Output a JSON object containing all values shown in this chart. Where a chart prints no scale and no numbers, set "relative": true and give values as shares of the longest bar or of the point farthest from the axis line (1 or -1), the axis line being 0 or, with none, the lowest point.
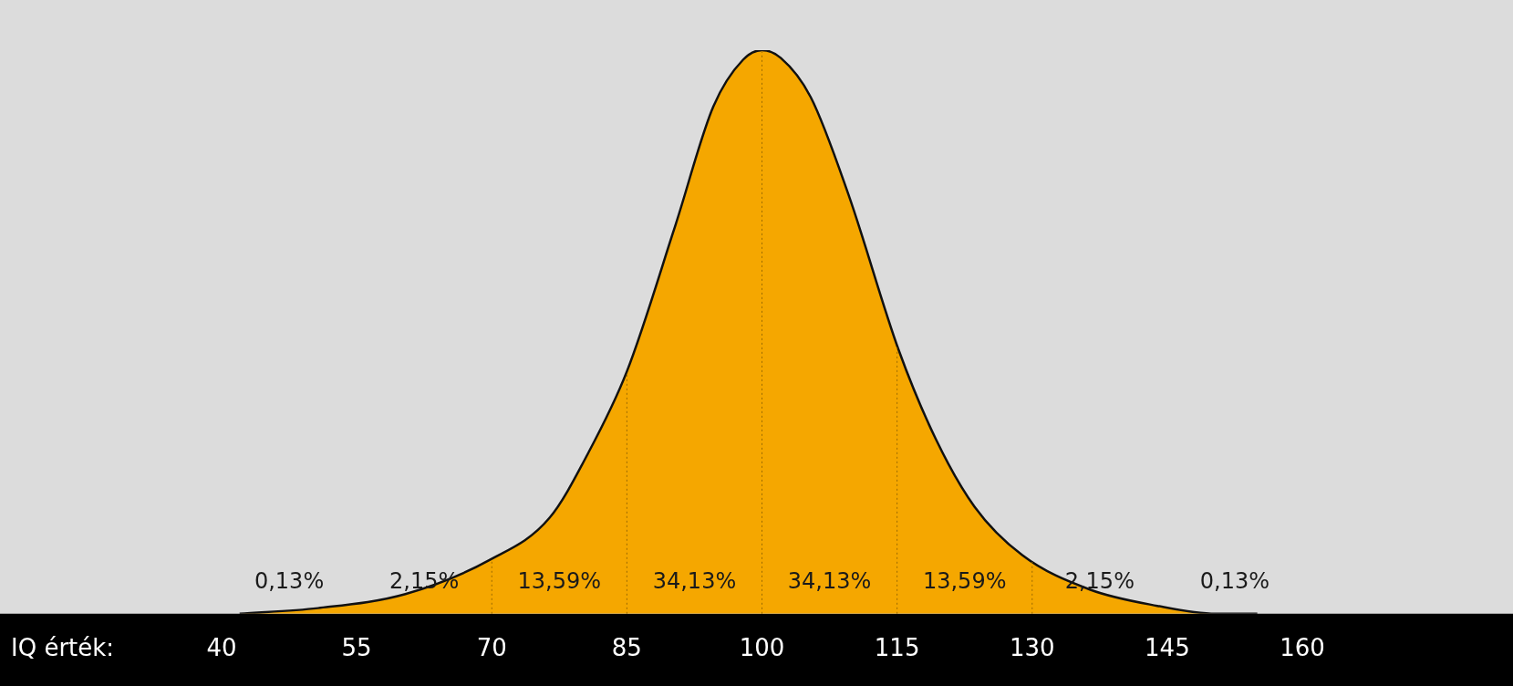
{
  "chart_data": {
    "type": "area",
    "relative": true,
    "xlabel": "IQ érték:",
    "xlim": [
      40,
      160
    ],
    "xticks": [
      40,
      55,
      70,
      85,
      100,
      115,
      130,
      145,
      160
    ],
    "tick_labels": "x",
    "grid": false,
    "legend": false,
    "series": [
      {
        "color": "#f5a700",
        "x": [
          42,
          50.7,
          60.4,
          69.7,
          76.4,
          80.7,
          85,
          90.4,
          94.6,
          97.9,
          100,
          102.1,
          105.4,
          109.6,
          115.2,
          119.3,
          123.6,
          128.9,
          136.4,
          143.9,
          150.4,
          155
        ],
        "values": [
          0,
          0.01,
          0.035,
          0.095,
          0.17,
          0.285,
          0.43,
          0.69,
          0.9,
          0.983,
          1,
          0.986,
          0.917,
          0.744,
          0.467,
          0.31,
          0.19,
          0.104,
          0.043,
          0.014,
          0,
          0
        ]
      }
    ],
    "ref_lines": [
      {
        "axis": "x",
        "value": 70,
        "color": "#9a6a00",
        "line_style": "dotted"
      },
      {
        "axis": "x",
        "value": 85,
        "color": "#9a6a00",
        "line_style": "dotted"
      },
      {
        "axis": "x",
        "value": 100,
        "color": "#9a6a00",
        "line_style": "dotted"
      },
      {
        "axis": "x",
        "value": 115,
        "color": "#9a6a00",
        "line_style": "dotted"
      },
      {
        "axis": "x",
        "value": 130,
        "color": "#9a6a00",
        "line_style": "dotted"
      }
    ],
    "annotations": [
      "0,13%",
      "2,15%",
      "13,59%",
      "34,13%",
      "34,13%",
      "13,59%",
      "2,15%",
      "0,13%"
    ]
  }
}
